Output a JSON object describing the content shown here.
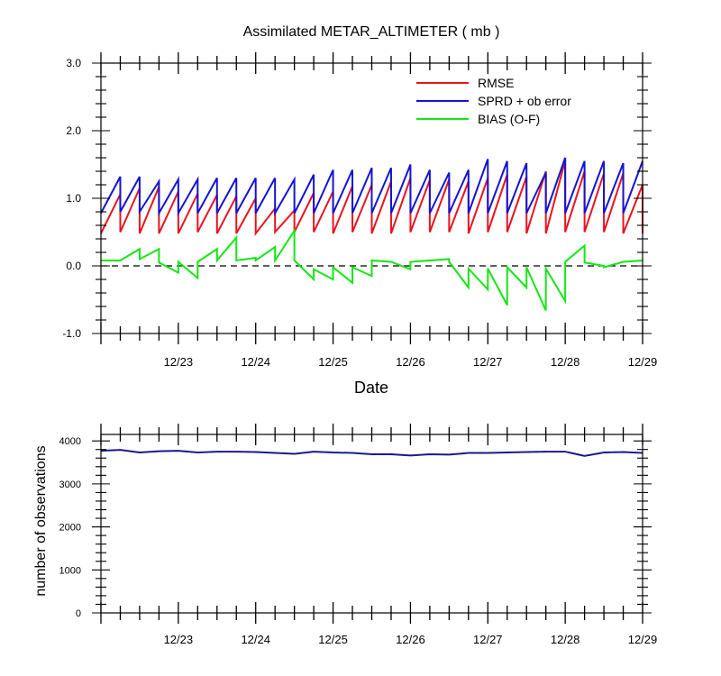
{
  "chart_data": [
    {
      "type": "line",
      "title": "Assimilated METAR_ALTIMETER ( mb )",
      "xlabel": "Date",
      "ylabel": "",
      "xlim": [
        0,
        7.0
      ],
      "ylim": [
        -1.0,
        3.0
      ],
      "yticks": [
        -1.0,
        0.0,
        1.0,
        2.0,
        3.0
      ],
      "ytick_labels": [
        "-1.0",
        "0.0",
        "1.0",
        "2.0",
        "3.0"
      ],
      "xticks": [
        1.0,
        2.0,
        3.0,
        4.0,
        5.0,
        6.0,
        7.0
      ],
      "xtick_labels": [
        "12/23",
        "12/24",
        "12/25",
        "12/26",
        "12/27",
        "12/28",
        "12/29"
      ],
      "zero_line": "dashed",
      "legend_position": "top-right",
      "series": [
        {
          "name": "RMSE",
          "color": "#e8141e",
          "points": [
            [
              0,
              0.48
            ],
            [
              0.25,
              1.06
            ],
            [
              0.25,
              0.5
            ],
            [
              0.5,
              1.15
            ],
            [
              0.5,
              0.48
            ],
            [
              0.75,
              1.17
            ],
            [
              0.75,
              0.48
            ],
            [
              1.0,
              1.1
            ],
            [
              1.0,
              0.48
            ],
            [
              1.25,
              1.07
            ],
            [
              1.25,
              0.5
            ],
            [
              1.5,
              1.05
            ],
            [
              1.5,
              0.48
            ],
            [
              1.75,
              1.03
            ],
            [
              1.75,
              0.48
            ],
            [
              2.0,
              1.0
            ],
            [
              2.0,
              0.48
            ],
            [
              2.25,
              0.85
            ],
            [
              2.25,
              0.5
            ],
            [
              2.5,
              0.82
            ],
            [
              2.5,
              0.5
            ],
            [
              2.75,
              1.08
            ],
            [
              2.75,
              0.5
            ],
            [
              3.0,
              1.1
            ],
            [
              3.0,
              0.48
            ],
            [
              3.25,
              1.18
            ],
            [
              3.25,
              0.5
            ],
            [
              3.5,
              1.2
            ],
            [
              3.5,
              0.48
            ],
            [
              3.75,
              1.25
            ],
            [
              3.75,
              0.48
            ],
            [
              4.0,
              1.3
            ],
            [
              4.0,
              0.5
            ],
            [
              4.25,
              1.27
            ],
            [
              4.25,
              0.5
            ],
            [
              4.5,
              1.28
            ],
            [
              4.5,
              0.5
            ],
            [
              4.75,
              1.25
            ],
            [
              4.75,
              0.48
            ],
            [
              5.0,
              1.3
            ],
            [
              5.0,
              0.5
            ],
            [
              5.25,
              1.35
            ],
            [
              5.25,
              0.5
            ],
            [
              5.5,
              1.32
            ],
            [
              5.5,
              0.48
            ],
            [
              5.75,
              1.4
            ],
            [
              5.75,
              0.48
            ],
            [
              6.0,
              1.56
            ],
            [
              6.0,
              0.5
            ],
            [
              6.25,
              1.4
            ],
            [
              6.25,
              0.5
            ],
            [
              6.5,
              1.37
            ],
            [
              6.5,
              0.5
            ],
            [
              6.75,
              1.37
            ],
            [
              6.75,
              0.48
            ],
            [
              7.0,
              1.2
            ],
            [
              7.0,
              0.48
            ]
          ]
        },
        {
          "name": "SPRD + ob error",
          "color": "#1414d2",
          "points": [
            [
              0,
              0.78
            ],
            [
              0.25,
              1.32
            ],
            [
              0.25,
              0.8
            ],
            [
              0.5,
              1.32
            ],
            [
              0.5,
              0.8
            ],
            [
              0.75,
              1.25
            ],
            [
              0.75,
              0.78
            ],
            [
              1.0,
              1.28
            ],
            [
              1.0,
              0.78
            ],
            [
              1.25,
              1.28
            ],
            [
              1.25,
              0.78
            ],
            [
              1.5,
              1.3
            ],
            [
              1.5,
              0.78
            ],
            [
              1.75,
              1.3
            ],
            [
              1.75,
              0.78
            ],
            [
              2.0,
              1.3
            ],
            [
              2.0,
              0.78
            ],
            [
              2.25,
              1.3
            ],
            [
              2.25,
              0.78
            ],
            [
              2.5,
              1.28
            ],
            [
              2.5,
              0.78
            ],
            [
              2.75,
              1.35
            ],
            [
              2.75,
              0.78
            ],
            [
              3.0,
              1.42
            ],
            [
              3.0,
              0.78
            ],
            [
              3.25,
              1.42
            ],
            [
              3.25,
              0.78
            ],
            [
              3.5,
              1.45
            ],
            [
              3.5,
              0.78
            ],
            [
              3.75,
              1.45
            ],
            [
              3.75,
              0.78
            ],
            [
              4.0,
              1.5
            ],
            [
              4.0,
              0.78
            ],
            [
              4.25,
              1.42
            ],
            [
              4.25,
              0.78
            ],
            [
              4.5,
              1.38
            ],
            [
              4.5,
              0.78
            ],
            [
              4.75,
              1.42
            ],
            [
              4.75,
              0.78
            ],
            [
              5.0,
              1.58
            ],
            [
              5.0,
              0.78
            ],
            [
              5.25,
              1.55
            ],
            [
              5.25,
              0.78
            ],
            [
              5.5,
              1.52
            ],
            [
              5.5,
              0.78
            ],
            [
              5.75,
              1.38
            ],
            [
              5.75,
              0.78
            ],
            [
              6.0,
              1.6
            ],
            [
              6.0,
              0.78
            ],
            [
              6.25,
              1.55
            ],
            [
              6.25,
              0.78
            ],
            [
              6.5,
              1.55
            ],
            [
              6.5,
              0.78
            ],
            [
              6.75,
              1.52
            ],
            [
              6.75,
              0.78
            ],
            [
              7.0,
              1.55
            ]
          ]
        },
        {
          "name": "BIAS (O-F)",
          "color": "#14e614",
          "points": [
            [
              0,
              0.08
            ],
            [
              0.25,
              0.08
            ],
            [
              0.5,
              0.25
            ],
            [
              0.5,
              0.1
            ],
            [
              0.75,
              0.25
            ],
            [
              0.75,
              0.05
            ],
            [
              1.0,
              -0.1
            ],
            [
              1.0,
              0.06
            ],
            [
              1.25,
              -0.18
            ],
            [
              1.25,
              0.06
            ],
            [
              1.5,
              0.25
            ],
            [
              1.5,
              0.08
            ],
            [
              1.75,
              0.42
            ],
            [
              1.75,
              0.08
            ],
            [
              2.0,
              0.12
            ],
            [
              2.0,
              0.08
            ],
            [
              2.25,
              0.28
            ],
            [
              2.25,
              0.08
            ],
            [
              2.5,
              0.52
            ],
            [
              2.5,
              0.08
            ],
            [
              2.75,
              -0.2
            ],
            [
              2.75,
              -0.05
            ],
            [
              3.0,
              -0.2
            ],
            [
              3.0,
              -0.02
            ],
            [
              3.25,
              -0.25
            ],
            [
              3.25,
              -0.02
            ],
            [
              3.5,
              -0.15
            ],
            [
              3.5,
              0.08
            ],
            [
              3.75,
              0.06
            ],
            [
              3.75,
              0.06
            ],
            [
              4.0,
              -0.05
            ],
            [
              4.0,
              0.06
            ],
            [
              4.25,
              0.08
            ],
            [
              4.25,
              0.08
            ],
            [
              4.5,
              0.1
            ],
            [
              4.5,
              0.06
            ],
            [
              4.75,
              -0.32
            ],
            [
              4.75,
              -0.04
            ],
            [
              5.0,
              -0.35
            ],
            [
              5.0,
              -0.04
            ],
            [
              5.25,
              -0.58
            ],
            [
              5.25,
              -0.02
            ],
            [
              5.5,
              -0.32
            ],
            [
              5.5,
              -0.02
            ],
            [
              5.75,
              -0.66
            ],
            [
              5.75,
              -0.04
            ],
            [
              6.0,
              -0.52
            ],
            [
              6.0,
              0.06
            ],
            [
              6.25,
              0.3
            ],
            [
              6.25,
              0.05
            ],
            [
              6.5,
              0.0
            ],
            [
              6.5,
              -0.02
            ],
            [
              6.75,
              0.06
            ],
            [
              6.75,
              0.06
            ],
            [
              7.0,
              0.08
            ]
          ]
        }
      ]
    },
    {
      "type": "line",
      "title": "",
      "xlabel": "",
      "ylabel": "number of observations",
      "xlim": [
        0,
        7.0
      ],
      "ylim": [
        0,
        4150
      ],
      "yticks": [
        0,
        1000,
        2000,
        3000,
        4000
      ],
      "ytick_labels": [
        "0",
        "1000",
        "2000",
        "3000",
        "4000"
      ],
      "xticks": [
        1.0,
        2.0,
        3.0,
        4.0,
        5.0,
        6.0,
        7.0
      ],
      "xtick_labels": [
        "12/23",
        "12/24",
        "12/25",
        "12/26",
        "12/27",
        "12/28",
        "12/29"
      ],
      "series": [
        {
          "name": "",
          "color": "#1414d2",
          "points": [
            [
              0,
              3770
            ],
            [
              0.25,
              3790
            ],
            [
              0.5,
              3730
            ],
            [
              0.75,
              3760
            ],
            [
              1.0,
              3770
            ],
            [
              1.25,
              3730
            ],
            [
              1.5,
              3750
            ],
            [
              1.75,
              3750
            ],
            [
              2.0,
              3740
            ],
            [
              2.25,
              3720
            ],
            [
              2.5,
              3700
            ],
            [
              2.75,
              3750
            ],
            [
              3.0,
              3730
            ],
            [
              3.25,
              3720
            ],
            [
              3.5,
              3690
            ],
            [
              3.75,
              3690
            ],
            [
              4.0,
              3660
            ],
            [
              4.25,
              3690
            ],
            [
              4.5,
              3680
            ],
            [
              4.75,
              3720
            ],
            [
              5.0,
              3720
            ],
            [
              5.25,
              3730
            ],
            [
              5.5,
              3740
            ],
            [
              5.75,
              3750
            ],
            [
              6.0,
              3750
            ],
            [
              6.25,
              3650
            ],
            [
              6.5,
              3730
            ],
            [
              6.75,
              3740
            ],
            [
              7.0,
              3720
            ]
          ]
        },
        {
          "name": "",
          "color": "#222222",
          "dashed": true,
          "points": [
            [
              0,
              3770
            ],
            [
              0.25,
              3790
            ],
            [
              0.5,
              3730
            ],
            [
              0.75,
              3760
            ],
            [
              1.0,
              3770
            ],
            [
              1.25,
              3730
            ],
            [
              1.5,
              3750
            ],
            [
              1.75,
              3750
            ],
            [
              2.0,
              3740
            ],
            [
              2.25,
              3720
            ],
            [
              2.5,
              3700
            ],
            [
              2.75,
              3750
            ],
            [
              3.0,
              3730
            ],
            [
              3.25,
              3720
            ],
            [
              3.5,
              3690
            ],
            [
              3.75,
              3690
            ],
            [
              4.0,
              3660
            ],
            [
              4.25,
              3690
            ],
            [
              4.5,
              3680
            ],
            [
              4.75,
              3720
            ],
            [
              5.0,
              3720
            ],
            [
              5.25,
              3730
            ],
            [
              5.5,
              3740
            ],
            [
              5.75,
              3750
            ],
            [
              6.0,
              3750
            ],
            [
              6.25,
              3650
            ],
            [
              6.5,
              3730
            ],
            [
              6.75,
              3740
            ],
            [
              7.0,
              3720
            ]
          ]
        }
      ]
    }
  ]
}
